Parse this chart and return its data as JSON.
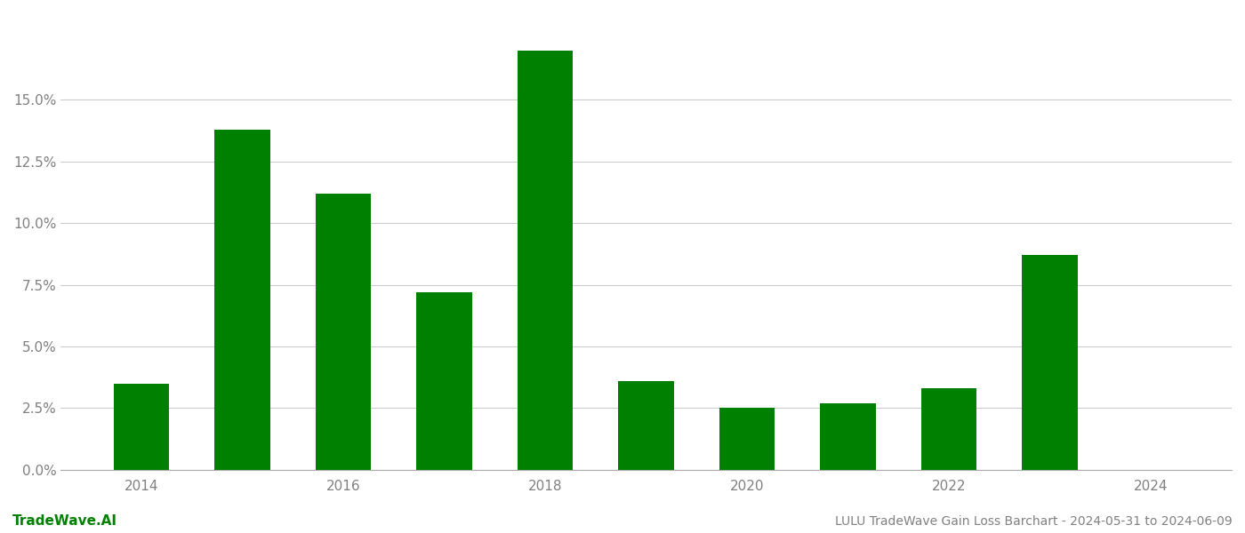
{
  "years": [
    2014,
    2015,
    2016,
    2017,
    2018,
    2019,
    2020,
    2021,
    2022,
    2023
  ],
  "values": [
    0.035,
    0.138,
    0.112,
    0.072,
    0.17,
    0.036,
    0.025,
    0.027,
    0.033,
    0.087
  ],
  "bar_color": "#008000",
  "background_color": "#ffffff",
  "grid_color": "#cccccc",
  "ylim": [
    0,
    0.185
  ],
  "yticks": [
    0.0,
    0.025,
    0.05,
    0.075,
    0.1,
    0.125,
    0.15
  ],
  "ytick_labels": [
    "0.0%",
    "2.5%",
    "5.0%",
    "7.5%",
    "10.0%",
    "12.5%",
    "15.0%"
  ],
  "xtick_labels": [
    "2014",
    "2016",
    "2018",
    "2020",
    "2022",
    "2024"
  ],
  "xticks": [
    2014,
    2016,
    2018,
    2020,
    2022,
    2024
  ],
  "xlim": [
    2013.2,
    2024.8
  ],
  "bottom_left_text": "TradeWave.AI",
  "bottom_right_text": "LULU TradeWave Gain Loss Barchart - 2024-05-31 to 2024-06-09",
  "text_color_left": "#008000",
  "text_color_right": "#808080",
  "axis_color": "#aaaaaa",
  "tick_label_color": "#808080",
  "bar_width": 0.55
}
